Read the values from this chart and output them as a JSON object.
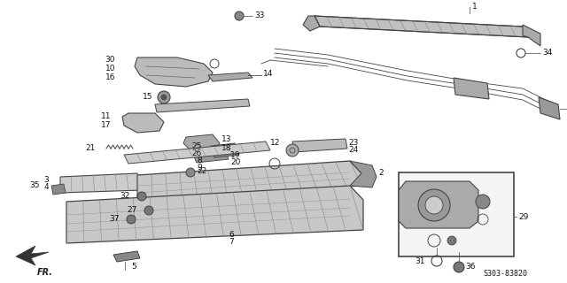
{
  "bg_color": "#ffffff",
  "dc": "#444444",
  "lc": "#111111",
  "fs": 6.5,
  "catalog_code": "S303-83820",
  "figsize": [
    6.4,
    3.2
  ],
  "dpi": 100
}
